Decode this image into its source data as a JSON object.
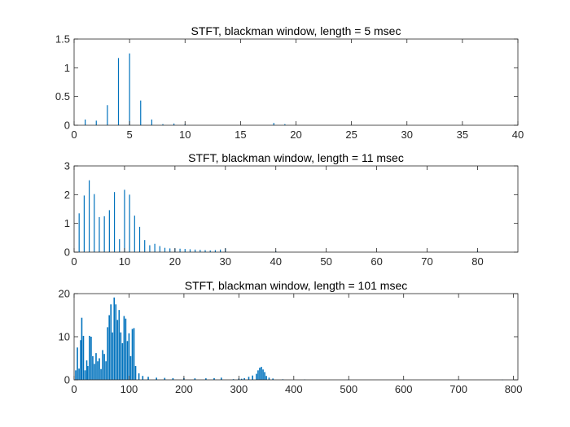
{
  "figure": {
    "background": "#ffffff",
    "axis_color": "#262626",
    "series_color": "#0072bd"
  },
  "chart_data": [
    {
      "type": "bar",
      "title": "STFT, blackman window, length = 5 msec",
      "xlim": [
        0,
        40
      ],
      "ylim": [
        0,
        1.5
      ],
      "xticks": [
        0,
        5,
        10,
        15,
        20,
        25,
        30,
        35,
        40
      ],
      "yticks": [
        0,
        0.5,
        1,
        1.5
      ],
      "xtick_labels": [
        "0",
        "5",
        "10",
        "15",
        "20",
        "25",
        "30",
        "35",
        "40"
      ],
      "ytick_labels": [
        "0",
        "0.5",
        "1",
        "1.5"
      ],
      "x": [
        1,
        2,
        3,
        4,
        5,
        6,
        7,
        8,
        9,
        10,
        18,
        19
      ],
      "values": [
        0.1,
        0.08,
        0.35,
        1.17,
        1.25,
        0.43,
        0.1,
        0.02,
        0.03,
        0.02,
        0.04,
        0.02
      ]
    },
    {
      "type": "bar",
      "title": "STFT, blackman window, length = 11 msec",
      "xlim": [
        0,
        88
      ],
      "ylim": [
        0,
        3
      ],
      "xticks": [
        0,
        10,
        20,
        30,
        40,
        50,
        60,
        70,
        80
      ],
      "yticks": [
        0,
        1,
        2,
        3
      ],
      "xtick_labels": [
        "0",
        "10",
        "20",
        "30",
        "40",
        "50",
        "60",
        "70",
        "80"
      ],
      "ytick_labels": [
        "0",
        "1",
        "2",
        "3"
      ],
      "x": [
        1,
        2,
        3,
        4,
        5,
        6,
        7,
        8,
        9,
        10,
        11,
        12,
        13,
        14,
        15,
        16,
        17,
        18,
        19,
        20,
        21,
        22,
        23,
        24,
        25,
        26,
        27,
        28,
        29,
        30,
        40,
        80
      ],
      "values": [
        1.35,
        1.97,
        2.5,
        2.02,
        1.22,
        1.25,
        1.46,
        2.09,
        0.45,
        2.17,
        2.0,
        1.27,
        0.88,
        0.42,
        0.24,
        0.29,
        0.21,
        0.15,
        0.13,
        0.13,
        0.12,
        0.11,
        0.1,
        0.09,
        0.08,
        0.07,
        0.06,
        0.07,
        0.09,
        0.13,
        0.04,
        0.05
      ]
    },
    {
      "type": "bar",
      "title": "STFT, blackman window, length = 101 msec",
      "xlim": [
        0,
        808
      ],
      "ylim": [
        0,
        20
      ],
      "xticks": [
        0,
        100,
        200,
        300,
        400,
        500,
        600,
        700,
        800
      ],
      "yticks": [
        0,
        10,
        20
      ],
      "xtick_labels": [
        "0",
        "100",
        "200",
        "300",
        "400",
        "500",
        "600",
        "700",
        "800"
      ],
      "ytick_labels": [
        "0",
        "10",
        "20"
      ],
      "x": [
        3,
        6,
        9,
        12,
        14,
        17,
        20,
        23,
        25,
        28,
        31,
        34,
        37,
        40,
        43,
        46,
        49,
        52,
        55,
        58,
        61,
        64,
        67,
        70,
        73,
        76,
        79,
        82,
        85,
        88,
        91,
        94,
        97,
        100,
        103,
        106,
        109,
        112,
        118,
        125,
        135,
        150,
        165,
        180,
        200,
        220,
        240,
        255,
        268,
        290,
        300,
        305,
        310,
        318,
        325,
        332,
        335,
        338,
        341,
        344,
        347,
        350,
        355,
        362,
        380,
        420,
        500,
        600,
        700,
        780
      ],
      "values": [
        2.2,
        7.5,
        2.6,
        9.2,
        14.4,
        10.2,
        2.2,
        4.5,
        3.2,
        10.2,
        10.0,
        5.5,
        3.7,
        6.2,
        4.3,
        5.0,
        2.5,
        6.9,
        6.0,
        4.3,
        12.2,
        15.0,
        17.5,
        11.0,
        19.1,
        17.5,
        13.9,
        16.2,
        11.0,
        8.5,
        14.8,
        14.2,
        9.0,
        10.8,
        5.5,
        11.8,
        12.0,
        3.2,
        1.5,
        0.9,
        0.7,
        0.5,
        0.45,
        0.4,
        0.4,
        0.35,
        0.35,
        0.4,
        0.5,
        0.15,
        0.3,
        0.25,
        0.4,
        0.7,
        1.0,
        1.4,
        2.2,
        2.8,
        3.0,
        2.4,
        1.8,
        0.9,
        0.5,
        0.3,
        0.12,
        0.08,
        0.06,
        0.05,
        0.05,
        0.04
      ]
    }
  ]
}
